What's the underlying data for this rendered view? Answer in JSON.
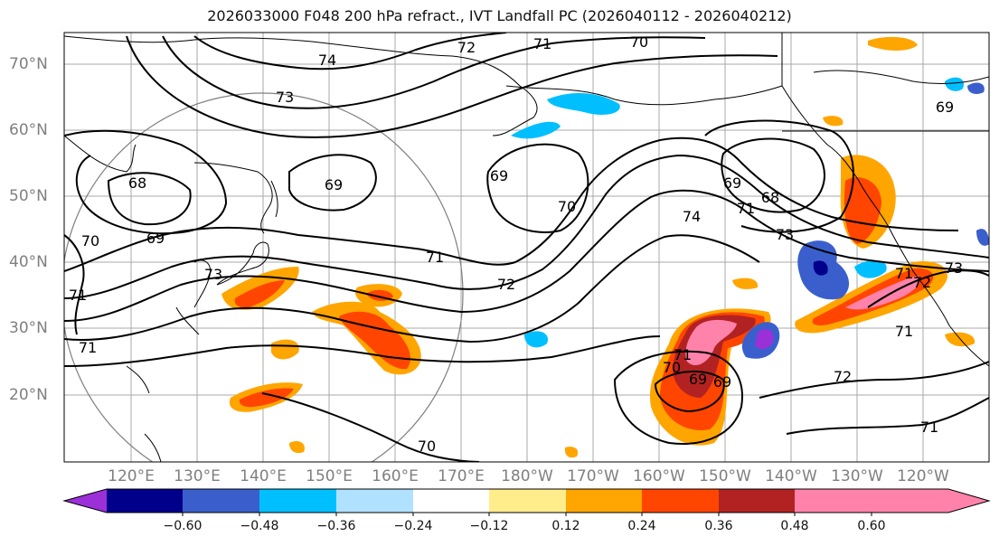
{
  "title": "2026033000 F048 200 hPa refract., IVT Landfall PC (2026040112 - 2026040212)",
  "lat_labels": [
    "70°N",
    "60°N",
    "50°N",
    "40°N",
    "30°N",
    "20°N"
  ],
  "lon_labels": [
    "120°E",
    "130°E",
    "140°E",
    "150°E",
    "160°E",
    "170°E",
    "180°W",
    "170°W",
    "160°W",
    "150°W",
    "140°W",
    "130°W",
    "120°W"
  ],
  "contour_labels": [
    "74",
    "72",
    "71",
    "70",
    "73",
    "68",
    "69",
    "69",
    "69",
    "70",
    "71",
    "69",
    "70",
    "71",
    "73",
    "70",
    "71",
    "69",
    "68",
    "71",
    "74",
    "73",
    "73",
    "72",
    "71",
    "69",
    "70",
    "69",
    "71",
    "72",
    "71",
    "72",
    "71"
  ],
  "colorbar": {
    "ticks": [
      "−0.60",
      "−0.48",
      "−0.36",
      "−0.24",
      "−0.12",
      "0.12",
      "0.24",
      "0.36",
      "0.48",
      "0.60"
    ],
    "colors": [
      "#9b30d9",
      "#00008b",
      "#3a5fcd",
      "#00bfff",
      "#b0e2ff",
      "#ffffff",
      "#ffec8b",
      "#ffa500",
      "#ff4500",
      "#b22222",
      "#ff82ab",
      "#ff82ab"
    ]
  }
}
